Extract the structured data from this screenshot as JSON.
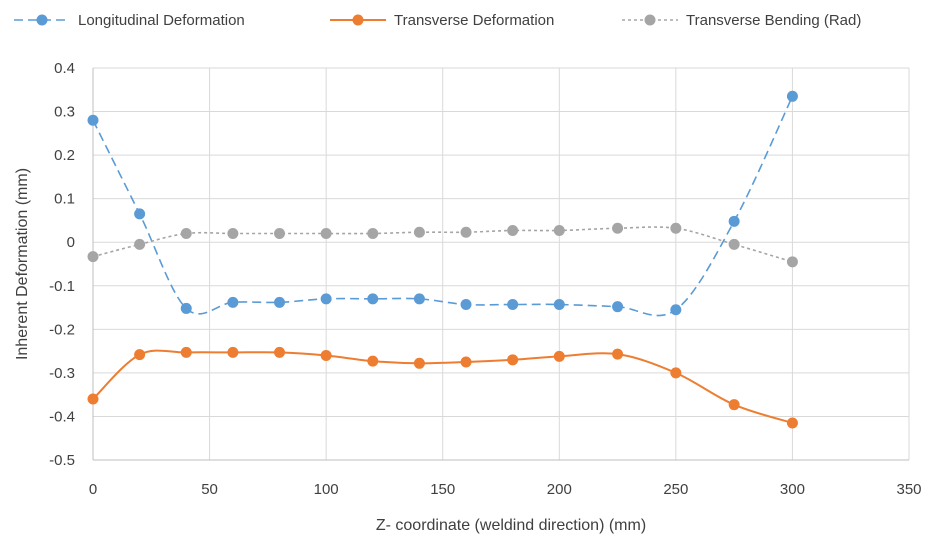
{
  "chart_data": {
    "type": "line",
    "xlabel": "Z- coordinate (weldind direction) (mm)",
    "ylabel": "Inherent Deformation (mm)",
    "xlim": [
      0,
      350
    ],
    "ylim": [
      -0.5,
      0.4
    ],
    "xticks": [
      0,
      50,
      100,
      150,
      200,
      250,
      300,
      350
    ],
    "yticks": [
      -0.5,
      -0.4,
      -0.3,
      -0.2,
      -0.1,
      0,
      0.1,
      0.2,
      0.3,
      0.4
    ],
    "grid": true,
    "legend_position": "top",
    "x": [
      0,
      20,
      40,
      60,
      80,
      100,
      120,
      140,
      160,
      180,
      200,
      225,
      250,
      275,
      300
    ],
    "series": [
      {
        "name": "Longitudinal Deformation",
        "color": "#5B9BD5",
        "line_style": "dashed",
        "values": [
          0.28,
          0.065,
          -0.152,
          -0.138,
          -0.138,
          -0.13,
          -0.13,
          -0.13,
          -0.143,
          -0.143,
          -0.143,
          -0.148,
          -0.155,
          0.048,
          0.335
        ]
      },
      {
        "name": "Transverse Deformation",
        "color": "#ED7D31",
        "line_style": "solid",
        "values": [
          -0.36,
          -0.258,
          -0.253,
          -0.253,
          -0.253,
          -0.26,
          -0.273,
          -0.278,
          -0.275,
          -0.27,
          -0.262,
          -0.257,
          -0.3,
          -0.373,
          -0.415
        ]
      },
      {
        "name": "Transverse Bending (Rad)",
        "color": "#A5A5A5",
        "line_style": "dotted",
        "values": [
          -0.033,
          -0.005,
          0.02,
          0.02,
          0.02,
          0.02,
          0.02,
          0.023,
          0.023,
          0.027,
          0.027,
          0.032,
          0.032,
          -0.005,
          -0.045
        ]
      }
    ]
  }
}
